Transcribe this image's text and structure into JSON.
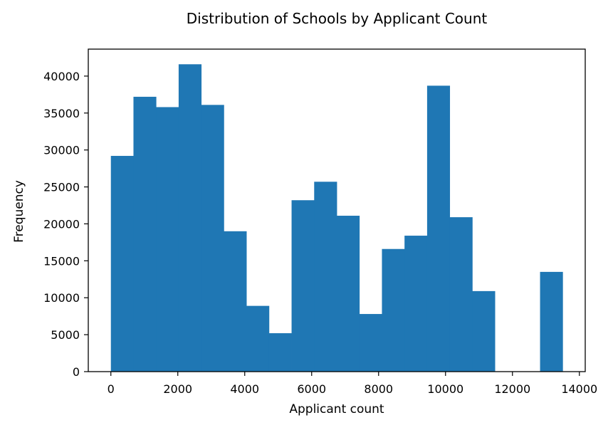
{
  "chart_data": {
    "type": "histogram",
    "title": "Distribution of Schools by Applicant Count",
    "xlabel": "Applicant count",
    "ylabel": "Frequency",
    "bar_color": "#1f77b4",
    "xlim": [
      -675,
      14175
    ],
    "ylim": [
      0,
      43650
    ],
    "x_ticks": [
      0,
      2000,
      4000,
      6000,
      8000,
      10000,
      12000,
      14000
    ],
    "x_tick_labels": [
      "0",
      "2000",
      "4000",
      "6000",
      "8000",
      "10000",
      "12000",
      "14000"
    ],
    "y_ticks": [
      0,
      5000,
      10000,
      15000,
      20000,
      25000,
      30000,
      35000,
      40000
    ],
    "y_tick_labels": [
      "0",
      "5000",
      "10000",
      "15000",
      "20000",
      "25000",
      "30000",
      "35000",
      "40000"
    ],
    "grid": false,
    "legend": "none",
    "bins": [
      {
        "x0": 0,
        "x1": 675,
        "count": 29200
      },
      {
        "x0": 675,
        "x1": 1350,
        "count": 37200
      },
      {
        "x0": 1350,
        "x1": 2025,
        "count": 35800
      },
      {
        "x0": 2025,
        "x1": 2700,
        "count": 41600
      },
      {
        "x0": 2700,
        "x1": 3375,
        "count": 36100
      },
      {
        "x0": 3375,
        "x1": 4050,
        "count": 19000
      },
      {
        "x0": 4050,
        "x1": 4725,
        "count": 8900
      },
      {
        "x0": 4725,
        "x1": 5400,
        "count": 5200
      },
      {
        "x0": 5400,
        "x1": 6075,
        "count": 23200
      },
      {
        "x0": 6075,
        "x1": 6750,
        "count": 25700
      },
      {
        "x0": 6750,
        "x1": 7425,
        "count": 21100
      },
      {
        "x0": 7425,
        "x1": 8100,
        "count": 7800
      },
      {
        "x0": 8100,
        "x1": 8775,
        "count": 16600
      },
      {
        "x0": 8775,
        "x1": 9450,
        "count": 18400
      },
      {
        "x0": 9450,
        "x1": 10125,
        "count": 38700
      },
      {
        "x0": 10125,
        "x1": 10800,
        "count": 20900
      },
      {
        "x0": 10800,
        "x1": 11475,
        "count": 10900
      },
      {
        "x0": 11475,
        "x1": 12150,
        "count": 0
      },
      {
        "x0": 12150,
        "x1": 12825,
        "count": 0
      },
      {
        "x0": 12825,
        "x1": 13500,
        "count": 13500
      }
    ]
  }
}
